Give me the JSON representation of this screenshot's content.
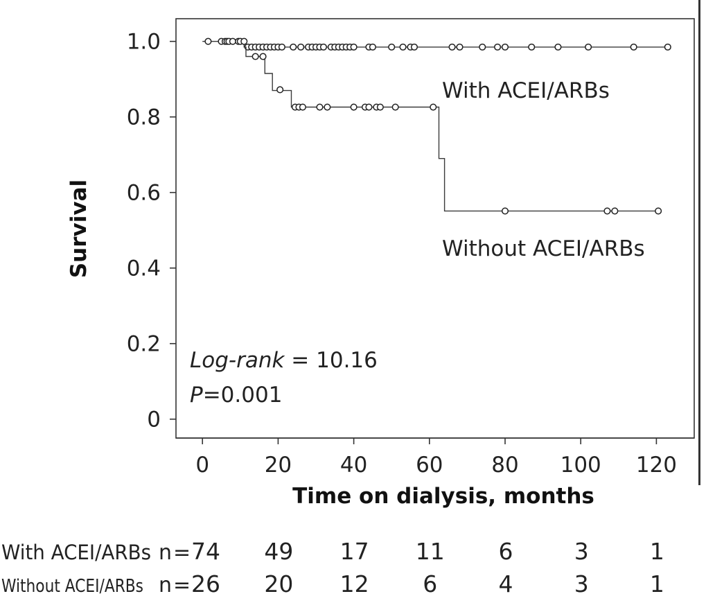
{
  "chart_data": {
    "type": "line",
    "subtype": "kaplan-meier",
    "title": "",
    "xlabel": "Time on dialysis, months",
    "ylabel": "Survival",
    "xlim": [
      -7,
      130
    ],
    "ylim": [
      -0.05,
      1.06
    ],
    "xticks": [
      0,
      20,
      40,
      60,
      80,
      100,
      120
    ],
    "xtick_labels": [
      "0",
      "20",
      "40",
      "60",
      "80",
      "100",
      "120"
    ],
    "yticks": [
      0,
      0.2,
      0.4,
      0.6,
      0.8,
      1.0
    ],
    "ytick_labels": [
      "0",
      "0.2",
      "0.4",
      "0.6",
      "0.8",
      "1.0"
    ],
    "grid": false,
    "legend": "none",
    "series": [
      {
        "name": "With ACEI/ARBs",
        "step_points": [
          [
            0,
            1.0
          ],
          [
            11,
            0.985
          ],
          [
            123,
            0.985
          ]
        ],
        "censored": [
          [
            1.5,
            1.0
          ],
          [
            5,
            1.0
          ],
          [
            6,
            1.0
          ],
          [
            6.5,
            1.0
          ],
          [
            7,
            1.0
          ],
          [
            8,
            1.0
          ],
          [
            9.5,
            1.0
          ],
          [
            10,
            1.0
          ],
          [
            11,
            1.0
          ],
          [
            12,
            0.985
          ],
          [
            13,
            0.985
          ],
          [
            14,
            0.985
          ],
          [
            15,
            0.985
          ],
          [
            16,
            0.985
          ],
          [
            17,
            0.985
          ],
          [
            18,
            0.985
          ],
          [
            19,
            0.985
          ],
          [
            20,
            0.985
          ],
          [
            21,
            0.985
          ],
          [
            24,
            0.985
          ],
          [
            26,
            0.985
          ],
          [
            28,
            0.985
          ],
          [
            29,
            0.985
          ],
          [
            30,
            0.985
          ],
          [
            31,
            0.985
          ],
          [
            32,
            0.985
          ],
          [
            34,
            0.985
          ],
          [
            35,
            0.985
          ],
          [
            36,
            0.985
          ],
          [
            37,
            0.985
          ],
          [
            38,
            0.985
          ],
          [
            39,
            0.985
          ],
          [
            40,
            0.985
          ],
          [
            44,
            0.985
          ],
          [
            45,
            0.985
          ],
          [
            50,
            0.985
          ],
          [
            53,
            0.985
          ],
          [
            55,
            0.985
          ],
          [
            56,
            0.985
          ],
          [
            66,
            0.985
          ],
          [
            68,
            0.985
          ],
          [
            74,
            0.985
          ],
          [
            78,
            0.985
          ],
          [
            80,
            0.985
          ],
          [
            87,
            0.985
          ],
          [
            94,
            0.985
          ],
          [
            102,
            0.985
          ],
          [
            114,
            0.985
          ],
          [
            123,
            0.985
          ]
        ]
      },
      {
        "name": "Without ACEI/ARBs",
        "step_points": [
          [
            11,
            0.985
          ],
          [
            11.5,
            0.96
          ],
          [
            16,
            0.96
          ],
          [
            16.5,
            0.915
          ],
          [
            18,
            0.915
          ],
          [
            18.5,
            0.87
          ],
          [
            21,
            0.87
          ],
          [
            23.5,
            0.87
          ],
          [
            23.5,
            0.826
          ],
          [
            62.5,
            0.826
          ],
          [
            62.5,
            0.69
          ],
          [
            64,
            0.69
          ],
          [
            64,
            0.551
          ],
          [
            121,
            0.551
          ]
        ],
        "censored": [
          [
            14,
            0.96
          ],
          [
            16,
            0.96
          ],
          [
            20.5,
            0.872
          ],
          [
            24.5,
            0.826
          ],
          [
            25.5,
            0.826
          ],
          [
            26.5,
            0.826
          ],
          [
            31,
            0.826
          ],
          [
            33,
            0.826
          ],
          [
            40,
            0.826
          ],
          [
            43,
            0.826
          ],
          [
            44,
            0.826
          ],
          [
            46,
            0.826
          ],
          [
            47,
            0.826
          ],
          [
            51,
            0.826
          ],
          [
            61,
            0.826
          ],
          [
            80,
            0.551
          ],
          [
            107,
            0.551
          ],
          [
            109,
            0.551
          ],
          [
            120.5,
            0.551
          ]
        ]
      }
    ],
    "series_labels": [
      "With ACEI/ARBs",
      "Without ACEI/ARBs"
    ],
    "annotation_logrank_label": "Log-rank",
    "annotation_logrank_value": " = 10.16",
    "annotation_p_label": "P",
    "annotation_p_value": "=0.001",
    "risk_table": {
      "rows": [
        {
          "label": "With ACEI/ARBs",
          "n_prefix": "n",
          "eq": "=",
          "values": [
            "74",
            "49",
            "17",
            "11",
            "6",
            "3",
            "1"
          ]
        },
        {
          "label": "Without ACEI/ARBs",
          "n_prefix": "n",
          "eq": "=",
          "values": [
            "26",
            "20",
            "12",
            "6",
            "4",
            "3",
            "1"
          ]
        }
      ]
    }
  }
}
